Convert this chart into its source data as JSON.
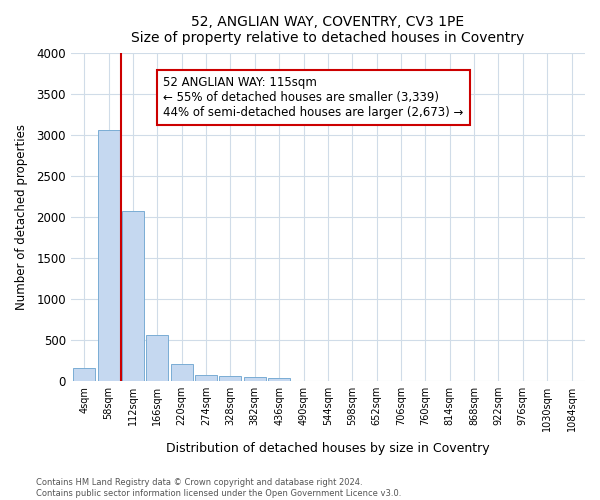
{
  "title": "52, ANGLIAN WAY, COVENTRY, CV3 1PE",
  "subtitle": "Size of property relative to detached houses in Coventry",
  "xlabel": "Distribution of detached houses by size in Coventry",
  "ylabel": "Number of detached properties",
  "bin_labels": [
    "4sqm",
    "58sqm",
    "112sqm",
    "166sqm",
    "220sqm",
    "274sqm",
    "328sqm",
    "382sqm",
    "436sqm",
    "490sqm",
    "544sqm",
    "598sqm",
    "652sqm",
    "706sqm",
    "760sqm",
    "814sqm",
    "868sqm",
    "922sqm",
    "976sqm",
    "1030sqm",
    "1084sqm"
  ],
  "bar_values": [
    150,
    3060,
    2070,
    565,
    210,
    70,
    55,
    45,
    40,
    0,
    0,
    0,
    0,
    0,
    0,
    0,
    0,
    0,
    0,
    0,
    0
  ],
  "bar_color": "#c5d8f0",
  "bar_edge_color": "#7aadd4",
  "vline_color": "#cc0000",
  "annotation_text": "52 ANGLIAN WAY: 115sqm\n← 55% of detached houses are smaller (3,339)\n44% of semi-detached houses are larger (2,673) →",
  "annotation_box_color": "#ffffff",
  "annotation_box_edge": "#cc0000",
  "ylim": [
    0,
    4000
  ],
  "yticks": [
    0,
    500,
    1000,
    1500,
    2000,
    2500,
    3000,
    3500,
    4000
  ],
  "footer1": "Contains HM Land Registry data © Crown copyright and database right 2024.",
  "footer2": "Contains public sector information licensed under the Open Government Licence v3.0.",
  "bg_color": "#ffffff",
  "plot_bg_color": "#ffffff",
  "grid_color": "#d0dce8"
}
